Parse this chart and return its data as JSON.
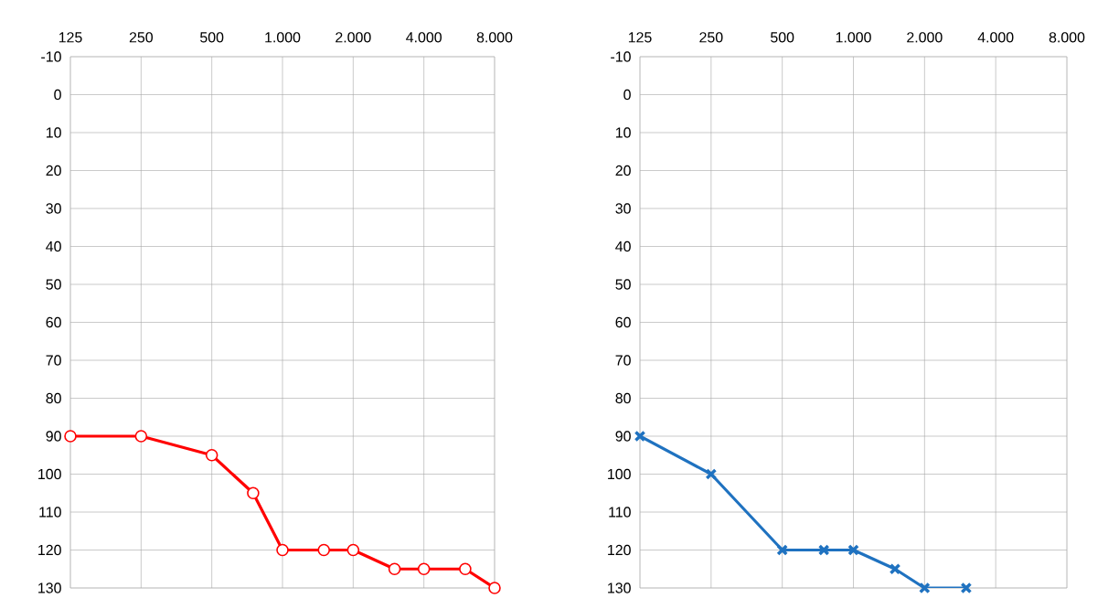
{
  "chart_data": [
    {
      "type": "line",
      "x": [
        125,
        250,
        500,
        750,
        1000,
        1500,
        2000,
        3000,
        4000,
        6000,
        8000
      ],
      "series": [
        {
          "color": "#ff0000",
          "marker": "circle",
          "values": [
            90,
            90,
            95,
            105,
            120,
            120,
            120,
            125,
            125,
            125,
            130
          ]
        }
      ],
      "log": "x",
      "xlim": [
        125,
        8000
      ],
      "xticks": [
        125,
        250,
        500,
        {
          "value": 1000,
          "label": "1.000"
        },
        {
          "value": 2000,
          "label": "2.000"
        },
        {
          "value": 4000,
          "label": "4.000"
        },
        {
          "value": 8000,
          "label": "8.000"
        }
      ],
      "ylim": [
        130,
        -10
      ],
      "yticks": [
        -10,
        0,
        10,
        20,
        30,
        40,
        50,
        60,
        70,
        80,
        90,
        100,
        110,
        120,
        130
      ],
      "grid": true
    },
    {
      "type": "line",
      "x": [
        125,
        250,
        500,
        750,
        1000,
        1500,
        2000,
        3000
      ],
      "series": [
        {
          "color": "#1f72c0",
          "marker": "cross",
          "values": [
            90,
            100,
            120,
            120,
            120,
            125,
            130,
            130
          ]
        }
      ],
      "log": "x",
      "xlim": [
        125,
        8000
      ],
      "xticks": [
        125,
        250,
        500,
        {
          "value": 1000,
          "label": "1.000"
        },
        {
          "value": 2000,
          "label": "2.000"
        },
        {
          "value": 4000,
          "label": "4.000"
        },
        {
          "value": 8000,
          "label": "8.000"
        }
      ],
      "ylim": [
        130,
        -10
      ],
      "yticks": [
        -10,
        0,
        10,
        20,
        30,
        40,
        50,
        60,
        70,
        80,
        90,
        100,
        110,
        120,
        130
      ],
      "grid": true
    }
  ]
}
